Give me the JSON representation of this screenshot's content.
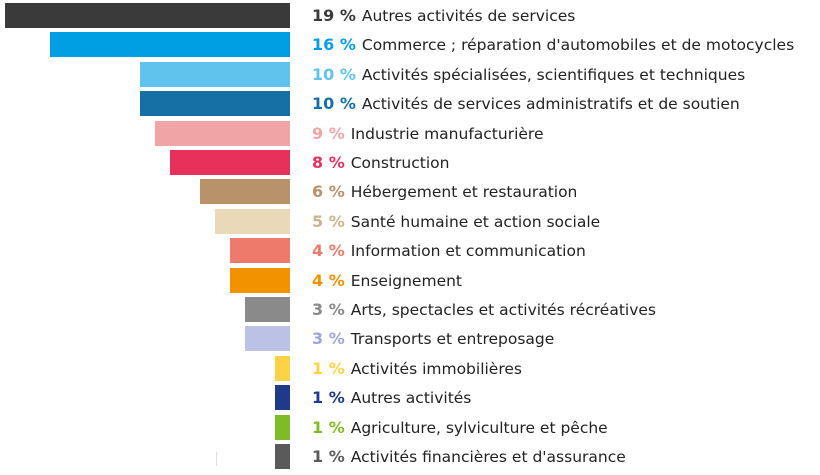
{
  "chart_data": {
    "type": "bar",
    "orientation": "horizontal",
    "title": "",
    "xlabel": "",
    "ylabel": "",
    "xlim": [
      0,
      20
    ],
    "grid": false,
    "legend": "none",
    "categories": [
      "Autres activités de services",
      "Commerce ; réparation d'automobiles et de motocycles",
      "Activités spécialisées, scientifiques et techniques",
      "Activités de services administratifs et de soutien",
      "Industrie manufacturière",
      "Construction",
      "Hébergement et restauration",
      "Santé humaine et action sociale",
      "Information et communication",
      "Enseignement",
      "Arts, spectacles et activités récréatives",
      "Transports et entreposage",
      "Activités immobilières",
      "Autres activités",
      "Agriculture, sylviculture et pêche",
      "Activités financières et d'assurance"
    ],
    "values": [
      19,
      16,
      10,
      10,
      9,
      8,
      6,
      5,
      4,
      4,
      3,
      3,
      1,
      1,
      1,
      1
    ],
    "value_labels": [
      "19 %",
      "16 %",
      "10 %",
      "10 %",
      "9 %",
      "8 %",
      "6 %",
      "5 %",
      "4 %",
      "4 %",
      "3 %",
      "3 %",
      "1 %",
      "1 %",
      "1 %",
      "1 %"
    ],
    "colors": [
      "#3a3a3a",
      "#009ee3",
      "#5fc3ee",
      "#1670a6",
      "#f0a4a5",
      "#e8315a",
      "#b8926a",
      "#e9d9b9",
      "#ee7a6b",
      "#f39200",
      "#8a8a8a",
      "#bcc2e6",
      "#fdd245",
      "#1f3a8a",
      "#7fba27",
      "#5a5a5a"
    ]
  }
}
